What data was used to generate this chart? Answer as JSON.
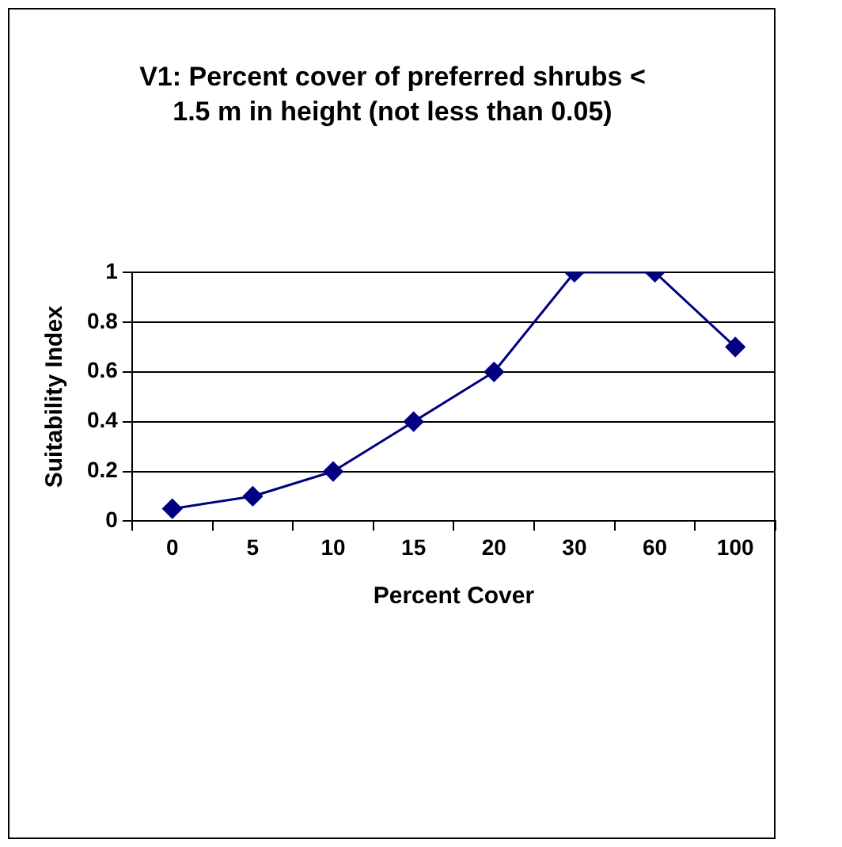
{
  "chart_data": {
    "type": "line",
    "title": "V1:  Percent cover of preferred shrubs < 1.5 m in height (not less than 0.05)",
    "xlabel": "Percent Cover",
    "ylabel": "Suitability Index",
    "categories": [
      "0",
      "5",
      "10",
      "15",
      "20",
      "30",
      "60",
      "100"
    ],
    "series": [
      {
        "color": "#000080",
        "values": [
          0.05,
          0.1,
          0.2,
          0.4,
          0.6,
          1,
          1,
          0.7
        ]
      }
    ],
    "ylim": [
      0,
      1
    ],
    "yticks": [
      0,
      0.2,
      0.4,
      0.6,
      0.8,
      1
    ],
    "grid": "y",
    "marker": "diamond",
    "legend": false
  }
}
